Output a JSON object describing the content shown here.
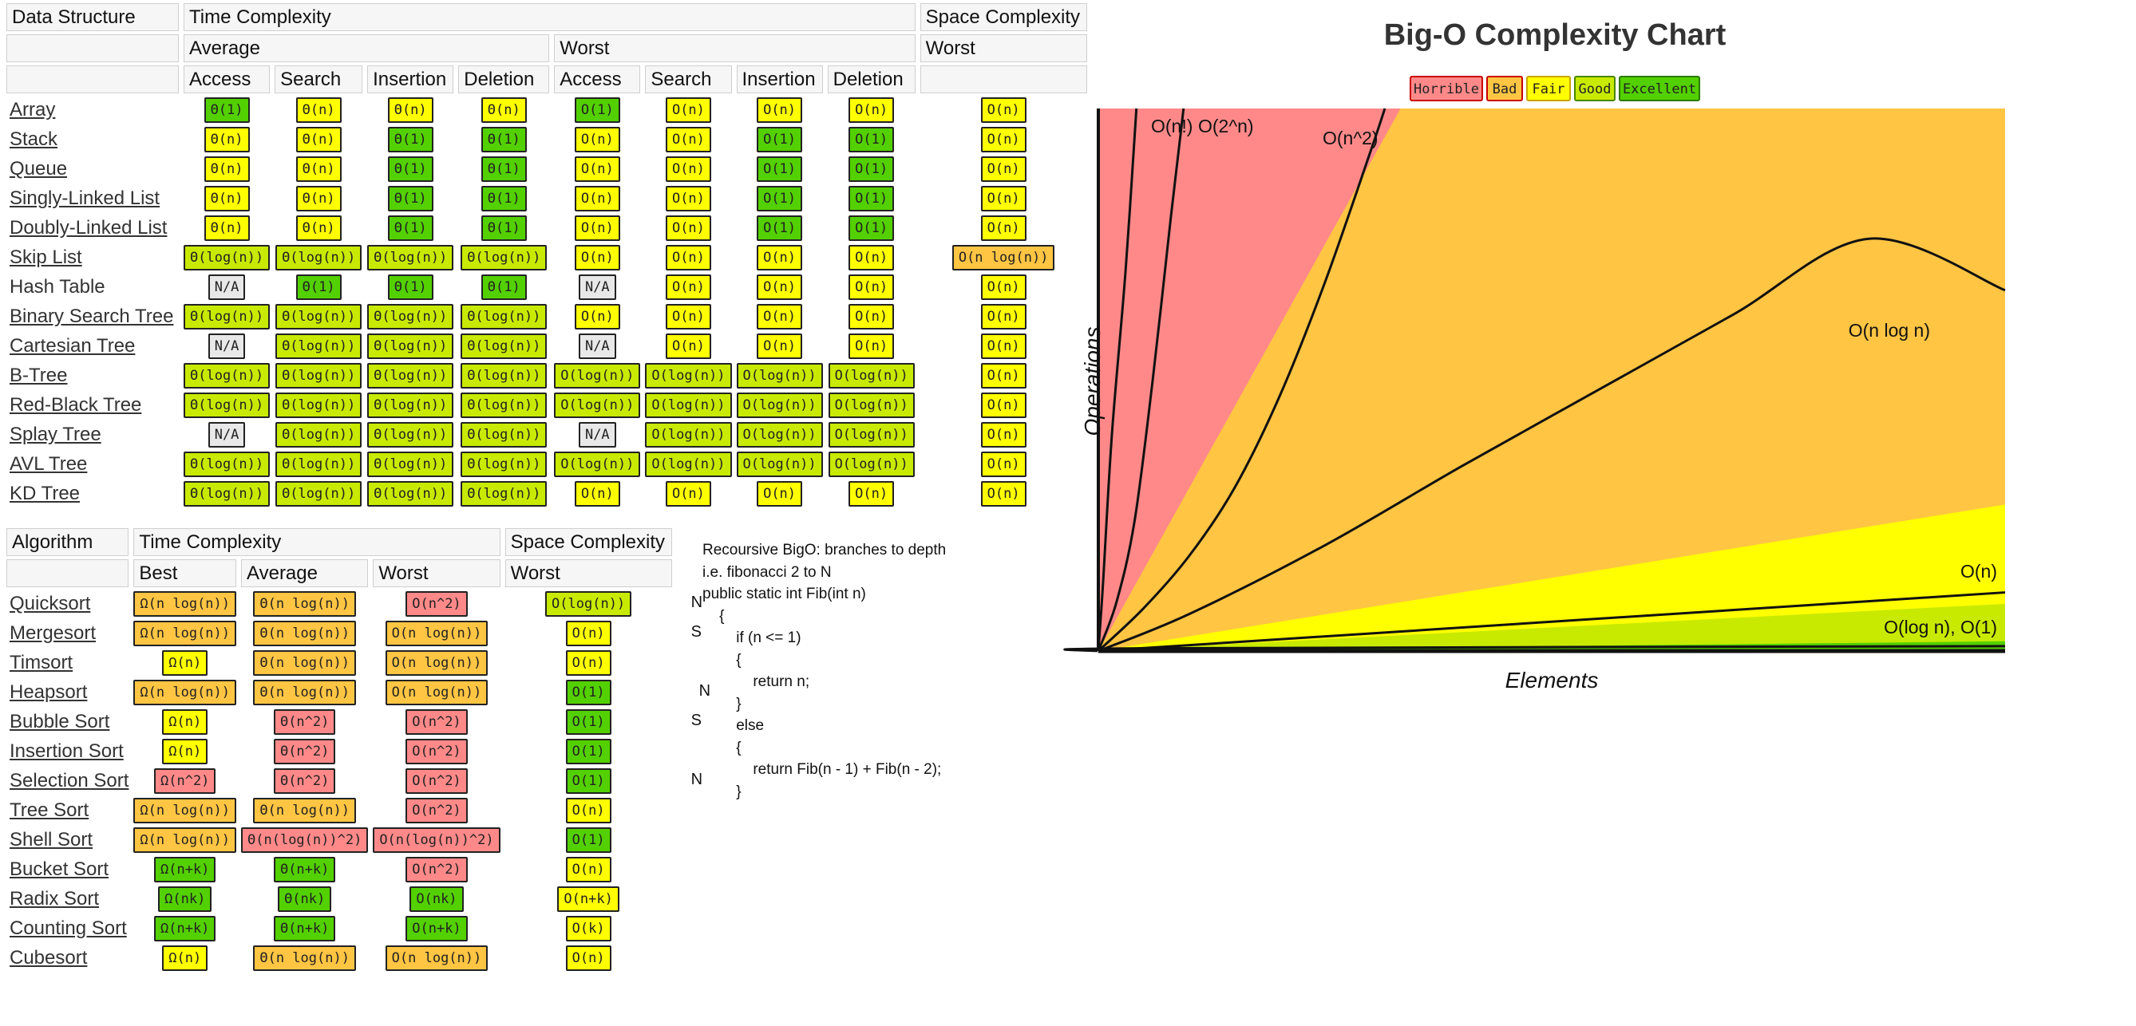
{
  "ds_table": {
    "header": {
      "col1": "Data Structure",
      "time": "Time Complexity",
      "space": "Space Complexity",
      "average": "Average",
      "worst": "Worst",
      "space_worst": "Worst",
      "ops": [
        "Access",
        "Search",
        "Insertion",
        "Deletion"
      ]
    },
    "rows": [
      {
        "name": "Array",
        "linked": true,
        "cells": [
          [
            "Θ(1)",
            "excellent"
          ],
          [
            "Θ(n)",
            "fair"
          ],
          [
            "Θ(n)",
            "fair"
          ],
          [
            "Θ(n)",
            "fair"
          ],
          [
            "O(1)",
            "excellent"
          ],
          [
            "O(n)",
            "fair"
          ],
          [
            "O(n)",
            "fair"
          ],
          [
            "O(n)",
            "fair"
          ],
          [
            "O(n)",
            "fair"
          ]
        ]
      },
      {
        "name": "Stack",
        "linked": true,
        "cells": [
          [
            "Θ(n)",
            "fair"
          ],
          [
            "Θ(n)",
            "fair"
          ],
          [
            "Θ(1)",
            "excellent"
          ],
          [
            "Θ(1)",
            "excellent"
          ],
          [
            "O(n)",
            "fair"
          ],
          [
            "O(n)",
            "fair"
          ],
          [
            "O(1)",
            "excellent"
          ],
          [
            "O(1)",
            "excellent"
          ],
          [
            "O(n)",
            "fair"
          ]
        ]
      },
      {
        "name": "Queue",
        "linked": true,
        "cells": [
          [
            "Θ(n)",
            "fair"
          ],
          [
            "Θ(n)",
            "fair"
          ],
          [
            "Θ(1)",
            "excellent"
          ],
          [
            "Θ(1)",
            "excellent"
          ],
          [
            "O(n)",
            "fair"
          ],
          [
            "O(n)",
            "fair"
          ],
          [
            "O(1)",
            "excellent"
          ],
          [
            "O(1)",
            "excellent"
          ],
          [
            "O(n)",
            "fair"
          ]
        ]
      },
      {
        "name": "Singly-Linked List",
        "linked": true,
        "cells": [
          [
            "Θ(n)",
            "fair"
          ],
          [
            "Θ(n)",
            "fair"
          ],
          [
            "Θ(1)",
            "excellent"
          ],
          [
            "Θ(1)",
            "excellent"
          ],
          [
            "O(n)",
            "fair"
          ],
          [
            "O(n)",
            "fair"
          ],
          [
            "O(1)",
            "excellent"
          ],
          [
            "O(1)",
            "excellent"
          ],
          [
            "O(n)",
            "fair"
          ]
        ]
      },
      {
        "name": "Doubly-Linked List",
        "linked": true,
        "cells": [
          [
            "Θ(n)",
            "fair"
          ],
          [
            "Θ(n)",
            "fair"
          ],
          [
            "Θ(1)",
            "excellent"
          ],
          [
            "Θ(1)",
            "excellent"
          ],
          [
            "O(n)",
            "fair"
          ],
          [
            "O(n)",
            "fair"
          ],
          [
            "O(1)",
            "excellent"
          ],
          [
            "O(1)",
            "excellent"
          ],
          [
            "O(n)",
            "fair"
          ]
        ]
      },
      {
        "name": "Skip List",
        "linked": true,
        "cells": [
          [
            "Θ(log(n))",
            "good"
          ],
          [
            "Θ(log(n))",
            "good"
          ],
          [
            "Θ(log(n))",
            "good"
          ],
          [
            "Θ(log(n))",
            "good"
          ],
          [
            "O(n)",
            "fair"
          ],
          [
            "O(n)",
            "fair"
          ],
          [
            "O(n)",
            "fair"
          ],
          [
            "O(n)",
            "fair"
          ],
          [
            "O(n log(n))",
            "bad"
          ]
        ]
      },
      {
        "name": "Hash Table",
        "linked": false,
        "cells": [
          [
            "N/A",
            "na"
          ],
          [
            "Θ(1)",
            "excellent"
          ],
          [
            "Θ(1)",
            "excellent"
          ],
          [
            "Θ(1)",
            "excellent"
          ],
          [
            "N/A",
            "na"
          ],
          [
            "O(n)",
            "fair"
          ],
          [
            "O(n)",
            "fair"
          ],
          [
            "O(n)",
            "fair"
          ],
          [
            "O(n)",
            "fair"
          ]
        ]
      },
      {
        "name": "Binary Search Tree",
        "linked": true,
        "cells": [
          [
            "Θ(log(n))",
            "good"
          ],
          [
            "Θ(log(n))",
            "good"
          ],
          [
            "Θ(log(n))",
            "good"
          ],
          [
            "Θ(log(n))",
            "good"
          ],
          [
            "O(n)",
            "fair"
          ],
          [
            "O(n)",
            "fair"
          ],
          [
            "O(n)",
            "fair"
          ],
          [
            "O(n)",
            "fair"
          ],
          [
            "O(n)",
            "fair"
          ]
        ]
      },
      {
        "name": "Cartesian Tree",
        "linked": true,
        "cells": [
          [
            "N/A",
            "na"
          ],
          [
            "Θ(log(n))",
            "good"
          ],
          [
            "Θ(log(n))",
            "good"
          ],
          [
            "Θ(log(n))",
            "good"
          ],
          [
            "N/A",
            "na"
          ],
          [
            "O(n)",
            "fair"
          ],
          [
            "O(n)",
            "fair"
          ],
          [
            "O(n)",
            "fair"
          ],
          [
            "O(n)",
            "fair"
          ]
        ]
      },
      {
        "name": "B-Tree",
        "linked": true,
        "cells": [
          [
            "Θ(log(n))",
            "good"
          ],
          [
            "Θ(log(n))",
            "good"
          ],
          [
            "Θ(log(n))",
            "good"
          ],
          [
            "Θ(log(n))",
            "good"
          ],
          [
            "O(log(n))",
            "good"
          ],
          [
            "O(log(n))",
            "good"
          ],
          [
            "O(log(n))",
            "good"
          ],
          [
            "O(log(n))",
            "good"
          ],
          [
            "O(n)",
            "fair"
          ]
        ]
      },
      {
        "name": "Red-Black Tree",
        "linked": true,
        "cells": [
          [
            "Θ(log(n))",
            "good"
          ],
          [
            "Θ(log(n))",
            "good"
          ],
          [
            "Θ(log(n))",
            "good"
          ],
          [
            "Θ(log(n))",
            "good"
          ],
          [
            "O(log(n))",
            "good"
          ],
          [
            "O(log(n))",
            "good"
          ],
          [
            "O(log(n))",
            "good"
          ],
          [
            "O(log(n))",
            "good"
          ],
          [
            "O(n)",
            "fair"
          ]
        ]
      },
      {
        "name": "Splay Tree",
        "linked": true,
        "cells": [
          [
            "N/A",
            "na"
          ],
          [
            "Θ(log(n))",
            "good"
          ],
          [
            "Θ(log(n))",
            "good"
          ],
          [
            "Θ(log(n))",
            "good"
          ],
          [
            "N/A",
            "na"
          ],
          [
            "O(log(n))",
            "good"
          ],
          [
            "O(log(n))",
            "good"
          ],
          [
            "O(log(n))",
            "good"
          ],
          [
            "O(n)",
            "fair"
          ]
        ]
      },
      {
        "name": "AVL Tree",
        "linked": true,
        "cells": [
          [
            "Θ(log(n))",
            "good"
          ],
          [
            "Θ(log(n))",
            "good"
          ],
          [
            "Θ(log(n))",
            "good"
          ],
          [
            "Θ(log(n))",
            "good"
          ],
          [
            "O(log(n))",
            "good"
          ],
          [
            "O(log(n))",
            "good"
          ],
          [
            "O(log(n))",
            "good"
          ],
          [
            "O(log(n))",
            "good"
          ],
          [
            "O(n)",
            "fair"
          ]
        ]
      },
      {
        "name": "KD Tree",
        "linked": true,
        "cells": [
          [
            "Θ(log(n))",
            "good"
          ],
          [
            "Θ(log(n))",
            "good"
          ],
          [
            "Θ(log(n))",
            "good"
          ],
          [
            "Θ(log(n))",
            "good"
          ],
          [
            "O(n)",
            "fair"
          ],
          [
            "O(n)",
            "fair"
          ],
          [
            "O(n)",
            "fair"
          ],
          [
            "O(n)",
            "fair"
          ],
          [
            "O(n)",
            "fair"
          ]
        ]
      }
    ]
  },
  "algo_table": {
    "header": {
      "col1": "Algorithm",
      "time": "Time Complexity",
      "space": "Space Complexity",
      "best": "Best",
      "average": "Average",
      "worst": "Worst",
      "space_worst": "Worst"
    },
    "rows": [
      {
        "name": "Quicksort",
        "note": "N",
        "cells": [
          [
            "Ω(n log(n))",
            "bad"
          ],
          [
            "Θ(n log(n))",
            "bad"
          ],
          [
            "O(n^2)",
            "horrible"
          ],
          [
            "O(log(n))",
            "good"
          ]
        ]
      },
      {
        "name": "Mergesort",
        "note": "S",
        "cells": [
          [
            "Ω(n log(n))",
            "bad"
          ],
          [
            "Θ(n log(n))",
            "bad"
          ],
          [
            "O(n log(n))",
            "bad"
          ],
          [
            "O(n)",
            "fair"
          ]
        ]
      },
      {
        "name": "Timsort",
        "note": "",
        "cells": [
          [
            "Ω(n)",
            "fair"
          ],
          [
            "Θ(n log(n))",
            "bad"
          ],
          [
            "O(n log(n))",
            "bad"
          ],
          [
            "O(n)",
            "fair"
          ]
        ]
      },
      {
        "name": "Heapsort",
        "note": "N",
        "cells": [
          [
            "Ω(n log(n))",
            "bad"
          ],
          [
            "Θ(n log(n))",
            "bad"
          ],
          [
            "O(n log(n))",
            "bad"
          ],
          [
            "O(1)",
            "excellent"
          ]
        ]
      },
      {
        "name": "Bubble Sort",
        "note": "S",
        "cells": [
          [
            "Ω(n)",
            "fair"
          ],
          [
            "Θ(n^2)",
            "horrible"
          ],
          [
            "O(n^2)",
            "horrible"
          ],
          [
            "O(1)",
            "excellent"
          ]
        ]
      },
      {
        "name": "Insertion Sort",
        "note": "",
        "cells": [
          [
            "Ω(n)",
            "fair"
          ],
          [
            "Θ(n^2)",
            "horrible"
          ],
          [
            "O(n^2)",
            "horrible"
          ],
          [
            "O(1)",
            "excellent"
          ]
        ]
      },
      {
        "name": "Selection Sort",
        "note": "N",
        "cells": [
          [
            "Ω(n^2)",
            "horrible"
          ],
          [
            "Θ(n^2)",
            "horrible"
          ],
          [
            "O(n^2)",
            "horrible"
          ],
          [
            "O(1)",
            "excellent"
          ]
        ]
      },
      {
        "name": "Tree Sort",
        "note": "",
        "cells": [
          [
            "Ω(n log(n))",
            "bad"
          ],
          [
            "Θ(n log(n))",
            "bad"
          ],
          [
            "O(n^2)",
            "horrible"
          ],
          [
            "O(n)",
            "fair"
          ]
        ]
      },
      {
        "name": "Shell Sort",
        "note": "",
        "cells": [
          [
            "Ω(n log(n))",
            "bad"
          ],
          [
            "Θ(n(log(n))^2)",
            "horrible"
          ],
          [
            "O(n(log(n))^2)",
            "horrible"
          ],
          [
            "O(1)",
            "excellent"
          ]
        ]
      },
      {
        "name": "Bucket Sort",
        "note": "",
        "cells": [
          [
            "Ω(n+k)",
            "excellent"
          ],
          [
            "Θ(n+k)",
            "excellent"
          ],
          [
            "O(n^2)",
            "horrible"
          ],
          [
            "O(n)",
            "fair"
          ]
        ]
      },
      {
        "name": "Radix Sort",
        "note": "",
        "cells": [
          [
            "Ω(nk)",
            "excellent"
          ],
          [
            "Θ(nk)",
            "excellent"
          ],
          [
            "O(nk)",
            "excellent"
          ],
          [
            "O(n+k)",
            "fair"
          ]
        ]
      },
      {
        "name": "Counting Sort",
        "note": "",
        "cells": [
          [
            "Ω(n+k)",
            "excellent"
          ],
          [
            "Θ(n+k)",
            "excellent"
          ],
          [
            "O(n+k)",
            "excellent"
          ],
          [
            "O(k)",
            "fair"
          ]
        ]
      },
      {
        "name": "Cubesort",
        "note": "",
        "cells": [
          [
            "Ω(n)",
            "fair"
          ],
          [
            "Θ(n log(n))",
            "bad"
          ],
          [
            "O(n log(n))",
            "bad"
          ],
          [
            "O(n)",
            "fair"
          ]
        ]
      }
    ]
  },
  "code_note": [
    "Recoursive BigO: branches to depth",
    "i.e. fibonacci 2 to N",
    "public static int Fib(int n)",
    "    {",
    "        if (n <= 1)",
    "        {",
    "            return n;",
    "        }",
    "        else",
    "        {",
    "            return Fib(n - 1) + Fib(n - 2);",
    "        }"
  ],
  "chart_data": {
    "type": "line",
    "title": "Big-O Complexity Chart",
    "xlabel": "Elements",
    "ylabel": "Operations",
    "legend": [
      {
        "label": "Horrible",
        "color": "#ff8989"
      },
      {
        "label": "Bad",
        "color": "#ffc543"
      },
      {
        "label": "Fair",
        "color": "#ffff00"
      },
      {
        "label": "Good",
        "color": "#c8ea00"
      },
      {
        "label": "Excellent",
        "color": "#53d000"
      }
    ],
    "legend_position": "top-center",
    "xlim": [
      0,
      100
    ],
    "ylim": [
      0,
      100
    ],
    "regions": [
      {
        "class": "Horrible",
        "color": "#ff8989",
        "upper_slope": null
      },
      {
        "class": "Bad",
        "color": "#ffc543",
        "upper_slope": 3.0
      },
      {
        "class": "Fair",
        "color": "#ffff00",
        "upper_slope": 0.27
      },
      {
        "class": "Good",
        "color": "#c8ea00",
        "upper_slope": 0.087
      },
      {
        "class": "Excellent",
        "color": "#53d000",
        "upper_slope": 0.018
      }
    ],
    "series": [
      {
        "name": "O(n!)",
        "points": [
          [
            0,
            0
          ],
          [
            0.5,
            12
          ],
          [
            1.5,
            40
          ],
          [
            3.0,
            70
          ],
          [
            4.2,
            100
          ]
        ]
      },
      {
        "name": "O(2^n)",
        "points": [
          [
            0,
            0
          ],
          [
            2,
            9
          ],
          [
            4,
            24
          ],
          [
            6,
            50
          ],
          [
            8,
            80
          ],
          [
            9.4,
            100
          ]
        ]
      },
      {
        "name": "O(n^2)",
        "points": [
          [
            0,
            0
          ],
          [
            5,
            7.9
          ],
          [
            10,
            17.5
          ],
          [
            15,
            30
          ],
          [
            20,
            47
          ],
          [
            25,
            68
          ],
          [
            30,
            92
          ],
          [
            31.6,
            100
          ]
        ]
      },
      {
        "name": "O(n log n)",
        "points": [
          [
            0,
            0
          ],
          [
            10,
            6.8
          ],
          [
            25,
            19.5
          ],
          [
            40,
            34
          ],
          [
            55,
            48
          ],
          [
            70,
            62
          ],
          [
            85,
            76
          ],
          [
            100,
            66.5
          ]
        ]
      },
      {
        "name": "O(n)",
        "points": [
          [
            0,
            0
          ],
          [
            100,
            10.8
          ]
        ]
      },
      {
        "name": "O(log n), O(1)",
        "points": [
          [
            0,
            0
          ],
          [
            5,
            0.5
          ],
          [
            100,
            0.9
          ]
        ]
      }
    ]
  }
}
